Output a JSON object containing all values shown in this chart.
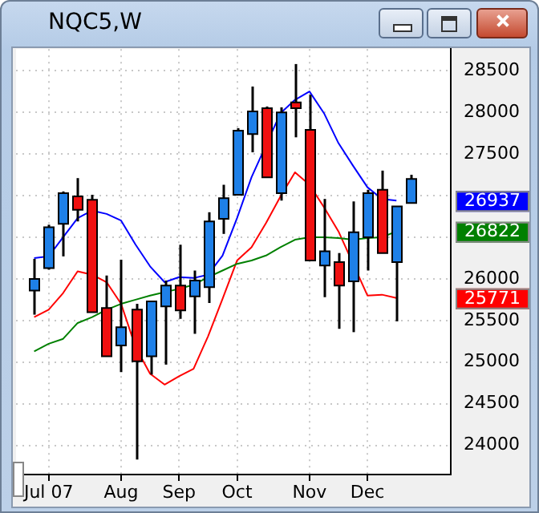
{
  "chart_data": {
    "type": "candlestick",
    "title": "NQC5,W",
    "categories": [
      null,
      "Jul 07",
      null,
      null,
      null,
      null,
      "Aug",
      null,
      null,
      null,
      "Sep",
      null,
      null,
      null,
      "Oct",
      null,
      null,
      null,
      null,
      "Nov",
      null,
      null,
      null,
      "Dec",
      null,
      null,
      null
    ],
    "ohlc": [
      [
        25860,
        26240,
        25570,
        26000
      ],
      [
        26130,
        26650,
        26110,
        26620
      ],
      [
        26660,
        27050,
        26270,
        27030
      ],
      [
        26990,
        27210,
        26690,
        26830
      ],
      [
        26950,
        27010,
        25600,
        25600
      ],
      [
        25650,
        26040,
        25070,
        25070
      ],
      [
        25200,
        26230,
        24880,
        25420
      ],
      [
        25630,
        25700,
        23830,
        25010
      ],
      [
        25070,
        25730,
        24850,
        25730
      ],
      [
        25670,
        25980,
        24970,
        25920
      ],
      [
        25920,
        26410,
        25520,
        25620
      ],
      [
        25790,
        26100,
        25340,
        25980
      ],
      [
        25900,
        26800,
        25710,
        26690
      ],
      [
        26720,
        27130,
        26540,
        26970
      ],
      [
        27010,
        27810,
        27010,
        27780
      ],
      [
        27740,
        28310,
        27520,
        28010
      ],
      [
        28050,
        28070,
        27220,
        27220
      ],
      [
        27030,
        28060,
        26940,
        28000
      ],
      [
        28120,
        28580,
        27700,
        28050
      ],
      [
        27790,
        28210,
        26220,
        26220
      ],
      [
        26160,
        26960,
        25780,
        26330
      ],
      [
        26200,
        26310,
        25400,
        25920
      ],
      [
        25970,
        26930,
        25360,
        26560
      ],
      [
        26500,
        27070,
        26100,
        27030
      ],
      [
        27070,
        27300,
        26310,
        26310
      ],
      [
        26200,
        26870,
        25490,
        26870
      ],
      [
        26910,
        27250,
        26910,
        27200
      ]
    ],
    "series": [
      {
        "type": "line",
        "color": "#0000ff",
        "values": [
          26250,
          26270,
          26500,
          26730,
          26820,
          26780,
          26700,
          26410,
          26150,
          25960,
          26020,
          26010,
          26050,
          26280,
          26730,
          27220,
          null,
          27990,
          28150,
          28250,
          27990,
          27630,
          27360,
          27100,
          26960,
          26940,
          null
        ]
      },
      {
        "type": "line",
        "color": "#008000",
        "values": [
          25130,
          25220,
          25280,
          25470,
          25540,
          25630,
          25700,
          25750,
          25800,
          25840,
          25880,
          25930,
          26020,
          26100,
          26180,
          26220,
          26280,
          26380,
          26470,
          26500,
          26500,
          26490,
          26470,
          26490,
          26500,
          26570,
          null
        ]
      },
      {
        "type": "line",
        "color": "#ff0000",
        "values": [
          25540,
          25630,
          25830,
          26090,
          26050,
          25960,
          25700,
          25180,
          24860,
          24730,
          24830,
          24920,
          25310,
          25760,
          26220,
          26380,
          26670,
          26990,
          27280,
          27130,
          26860,
          26570,
          null,
          25800,
          25810,
          25770,
          null
        ]
      }
    ],
    "ylim": [
      23650,
      28760
    ],
    "yticks": [
      24000,
      24500,
      25000,
      25500,
      26000,
      26500,
      {
        "value": 27000,
        "label": null
      },
      27500,
      28000,
      28500
    ],
    "annotations": [
      "26937",
      "26822",
      "25771"
    ],
    "grid": true,
    "legend": false,
    "marker": "none",
    "line_style": "solid"
  }
}
